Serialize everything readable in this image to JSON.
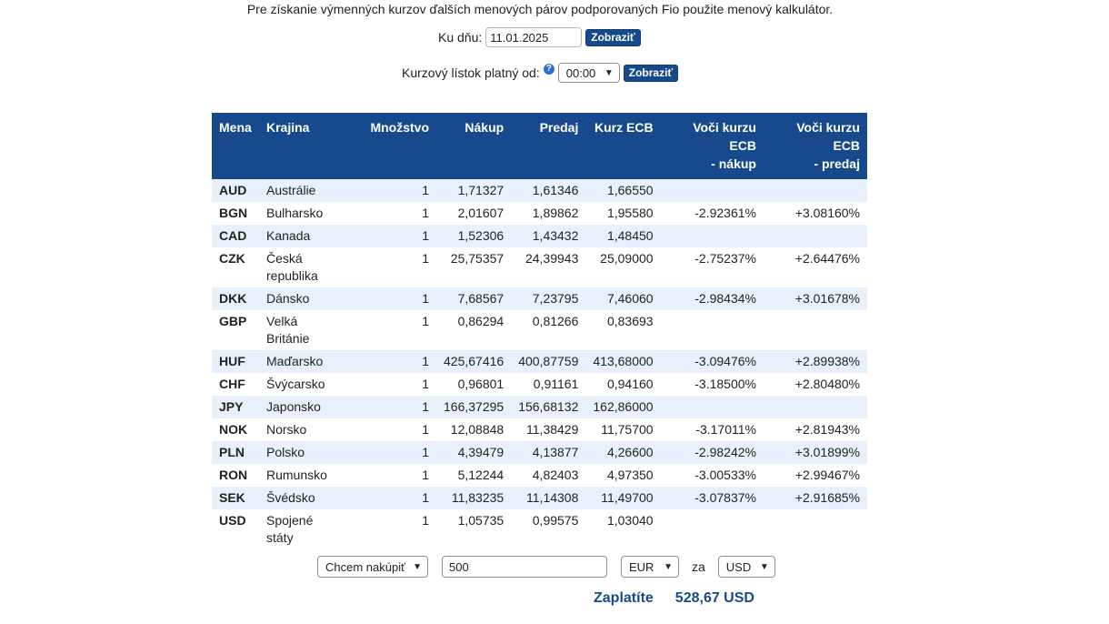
{
  "intro_text": "Pre získanie výmenných kurzov ďalších menových párov podporovaných Fio použite menový kalkulátor.",
  "date_filter": {
    "label": "Ku dňu:",
    "value": "11.01.2025",
    "button": "Zobraziť"
  },
  "time_filter": {
    "label": "Kurzový lístok platný od:",
    "help_icon": "?",
    "selected": "00:00",
    "button": "Zobraziť"
  },
  "table": {
    "headers": {
      "mena": "Mena",
      "krajina": "Krajina",
      "mnozstvo": "Množstvo",
      "nakup": "Nákup",
      "predaj": "Predaj",
      "kurz_ecb": "Kurz ECB",
      "voci_nakup_1": "Voči kurzu ECB",
      "voci_nakup_2": "- nákup",
      "voci_predaj_1": "Voči kurzu ECB",
      "voci_predaj_2": "- predaj"
    },
    "rows": [
      {
        "mena": "AUD",
        "krajina1": "Austrálie",
        "krajina2": "",
        "mnozstvo": "1",
        "nakup": "1,71327",
        "predaj": "1,61346",
        "ecb": "1,66550",
        "voci_nakup": "",
        "voci_predaj": ""
      },
      {
        "mena": "BGN",
        "krajina1": "Bulharsko",
        "krajina2": "",
        "mnozstvo": "1",
        "nakup": "2,01607",
        "predaj": "1,89862",
        "ecb": "1,95580",
        "voci_nakup": "-2.92361%",
        "voci_predaj": "+3.08160%"
      },
      {
        "mena": "CAD",
        "krajina1": "Kanada",
        "krajina2": "",
        "mnozstvo": "1",
        "nakup": "1,52306",
        "predaj": "1,43432",
        "ecb": "1,48450",
        "voci_nakup": "",
        "voci_predaj": ""
      },
      {
        "mena": "CZK",
        "krajina1": "Česká",
        "krajina2": "republika",
        "mnozstvo": "1",
        "nakup": "25,75357",
        "predaj": "24,39943",
        "ecb": "25,09000",
        "voci_nakup": "-2.75237%",
        "voci_predaj": "+2.64476%"
      },
      {
        "mena": "DKK",
        "krajina1": "Dánsko",
        "krajina2": "",
        "mnozstvo": "1",
        "nakup": "7,68567",
        "predaj": "7,23795",
        "ecb": "7,46060",
        "voci_nakup": "-2.98434%",
        "voci_predaj": "+3.01678%"
      },
      {
        "mena": "GBP",
        "krajina1": "Velká",
        "krajina2": "Británie",
        "mnozstvo": "1",
        "nakup": "0,86294",
        "predaj": "0,81266",
        "ecb": "0,83693",
        "voci_nakup": "",
        "voci_predaj": ""
      },
      {
        "mena": "HUF",
        "krajina1": "Maďarsko",
        "krajina2": "",
        "mnozstvo": "1",
        "nakup": "425,67416",
        "predaj": "400,87759",
        "ecb": "413,68000",
        "voci_nakup": "-3.09476%",
        "voci_predaj": "+2.89938%"
      },
      {
        "mena": "CHF",
        "krajina1": "Švýcarsko",
        "krajina2": "",
        "mnozstvo": "1",
        "nakup": "0,96801",
        "predaj": "0,91161",
        "ecb": "0,94160",
        "voci_nakup": "-3.18500%",
        "voci_predaj": "+2.80480%"
      },
      {
        "mena": "JPY",
        "krajina1": "Japonsko",
        "krajina2": "",
        "mnozstvo": "1",
        "nakup": "166,37295",
        "predaj": "156,68132",
        "ecb": "162,86000",
        "voci_nakup": "",
        "voci_predaj": ""
      },
      {
        "mena": "NOK",
        "krajina1": "Norsko",
        "krajina2": "",
        "mnozstvo": "1",
        "nakup": "12,08848",
        "predaj": "11,38429",
        "ecb": "11,75700",
        "voci_nakup": "-3.17011%",
        "voci_predaj": "+2.81943%"
      },
      {
        "mena": "PLN",
        "krajina1": "Polsko",
        "krajina2": "",
        "mnozstvo": "1",
        "nakup": "4,39479",
        "predaj": "4,13877",
        "ecb": "4,26600",
        "voci_nakup": "-2.98242%",
        "voci_predaj": "+3.01899%"
      },
      {
        "mena": "RON",
        "krajina1": "Rumunsko",
        "krajina2": "",
        "mnozstvo": "1",
        "nakup": "5,12244",
        "predaj": "4,82403",
        "ecb": "4,97350",
        "voci_nakup": "-3.00533%",
        "voci_predaj": "+2.99467%"
      },
      {
        "mena": "SEK",
        "krajina1": "Švédsko",
        "krajina2": "",
        "mnozstvo": "1",
        "nakup": "11,83235",
        "predaj": "11,14308",
        "ecb": "11,49700",
        "voci_nakup": "-3.07837%",
        "voci_predaj": "+2.91685%"
      },
      {
        "mena": "USD",
        "krajina1": "Spojené",
        "krajina2": "státy",
        "mnozstvo": "1",
        "nakup": "1,05735",
        "predaj": "0,99575",
        "ecb": "1,03040",
        "voci_nakup": "",
        "voci_predaj": ""
      }
    ]
  },
  "calculator": {
    "action": "Chcem nakúpiť",
    "amount": "500",
    "from_currency": "EUR",
    "connector": "za",
    "to_currency": "USD",
    "result_label": "Zaplatíte",
    "result_value": "528,67 USD"
  },
  "colors": {
    "accent": "#174a8c",
    "row_alt": "#e8f1fb",
    "help": "#2e6fd6"
  },
  "icons": {
    "chevron": "chevron-down-icon",
    "help": "help-icon"
  }
}
